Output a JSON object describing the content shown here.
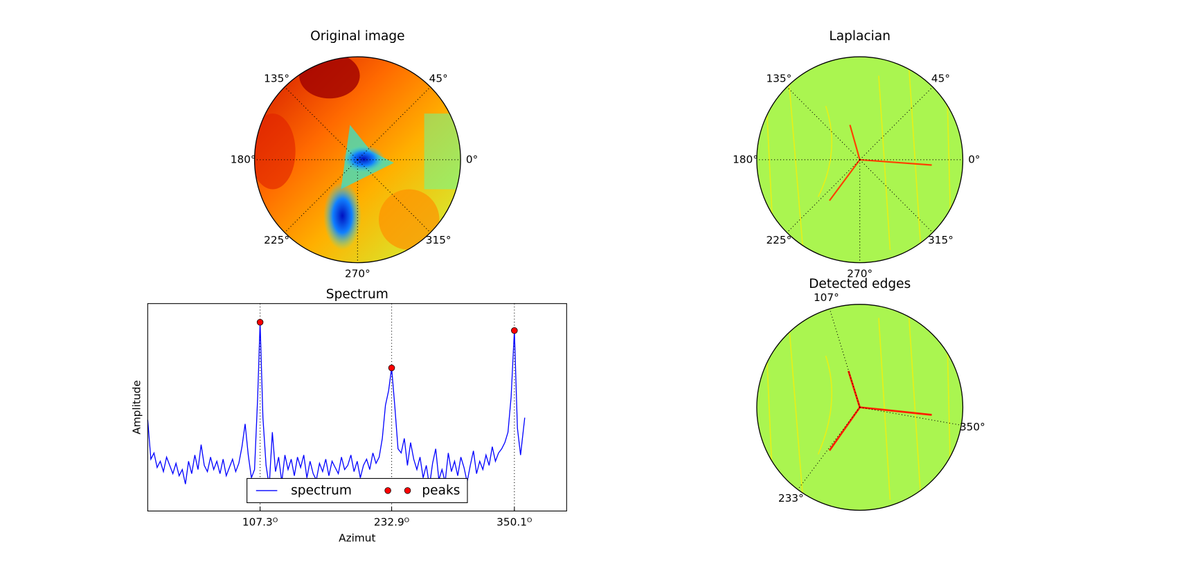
{
  "chart_data": [
    {
      "type": "polar-image",
      "title": "Original image",
      "colormap": "jet",
      "thetaticks": [
        {
          "value": 0,
          "label": "0°"
        },
        {
          "value": 45,
          "label": "45°"
        },
        {
          "value": 135,
          "label": "135°"
        },
        {
          "value": 180,
          "label": "180°"
        },
        {
          "value": 225,
          "label": "225°"
        },
        {
          "value": 270,
          "label": "270°"
        },
        {
          "value": 315,
          "label": "315°"
        }
      ],
      "grid": true
    },
    {
      "type": "polar-image",
      "title": "Laplacian",
      "thetaticks": [
        {
          "value": 0,
          "label": "0°"
        },
        {
          "value": 45,
          "label": "45°"
        },
        {
          "value": 135,
          "label": "135°"
        },
        {
          "value": 180,
          "label": "180°"
        },
        {
          "value": 225,
          "label": "225°"
        },
        {
          "value": 270,
          "label": "270°"
        },
        {
          "value": 315,
          "label": "315°"
        }
      ],
      "grid": true
    },
    {
      "type": "line",
      "title": "Spectrum",
      "xlabel": "Azimut",
      "ylabel": "Amplitude",
      "xlim": [
        0,
        400
      ],
      "ylim": [
        0,
        1
      ],
      "xticks": [
        {
          "value": 107.3,
          "label": "107.3ᴼ"
        },
        {
          "value": 232.9,
          "label": "232.9ᴼ"
        },
        {
          "value": 350.1,
          "label": "350.1ᴼ"
        }
      ],
      "grid": true,
      "legend": "lower center",
      "series": [
        {
          "name": "spectrum",
          "color": "#0000ff",
          "x": [
            0,
            3,
            6,
            9,
            12,
            15,
            18,
            21,
            24,
            27,
            30,
            33,
            36,
            39,
            42,
            45,
            48,
            51,
            54,
            57,
            60,
            63,
            66,
            69,
            72,
            75,
            78,
            81,
            84,
            87,
            90,
            93,
            96,
            99,
            102,
            105,
            107.3,
            110,
            113,
            116,
            119,
            122,
            125,
            128,
            131,
            134,
            137,
            140,
            143,
            146,
            149,
            152,
            155,
            158,
            161,
            164,
            167,
            170,
            173,
            176,
            179,
            182,
            185,
            188,
            191,
            194,
            197,
            200,
            203,
            206,
            209,
            212,
            215,
            218,
            221,
            224,
            227,
            230,
            232.9,
            236,
            239,
            242,
            245,
            248,
            251,
            254,
            257,
            260,
            263,
            266,
            269,
            272,
            275,
            278,
            281,
            284,
            287,
            290,
            293,
            296,
            299,
            302,
            305,
            308,
            311,
            314,
            317,
            320,
            323,
            326,
            329,
            332,
            335,
            338,
            341,
            344,
            347,
            350.1,
            353,
            356,
            360
          ],
          "values": [
            0.44,
            0.25,
            0.28,
            0.21,
            0.24,
            0.19,
            0.26,
            0.22,
            0.18,
            0.23,
            0.17,
            0.2,
            0.13,
            0.24,
            0.18,
            0.27,
            0.2,
            0.32,
            0.22,
            0.19,
            0.26,
            0.2,
            0.24,
            0.18,
            0.25,
            0.17,
            0.21,
            0.25,
            0.19,
            0.23,
            0.31,
            0.42,
            0.27,
            0.16,
            0.2,
            0.55,
            0.91,
            0.45,
            0.22,
            0.12,
            0.38,
            0.19,
            0.26,
            0.14,
            0.27,
            0.2,
            0.25,
            0.17,
            0.26,
            0.21,
            0.27,
            0.16,
            0.24,
            0.18,
            0.15,
            0.23,
            0.19,
            0.25,
            0.17,
            0.24,
            0.21,
            0.18,
            0.26,
            0.2,
            0.22,
            0.27,
            0.19,
            0.24,
            0.16,
            0.22,
            0.25,
            0.2,
            0.28,
            0.23,
            0.26,
            0.35,
            0.51,
            0.58,
            0.69,
            0.5,
            0.3,
            0.28,
            0.35,
            0.22,
            0.33,
            0.25,
            0.2,
            0.26,
            0.16,
            0.22,
            0.12,
            0.23,
            0.3,
            0.15,
            0.2,
            0.14,
            0.28,
            0.19,
            0.24,
            0.17,
            0.26,
            0.21,
            0.14,
            0.22,
            0.29,
            0.18,
            0.24,
            0.2,
            0.27,
            0.22,
            0.31,
            0.24,
            0.28,
            0.3,
            0.33,
            0.38,
            0.55,
            0.87,
            0.4,
            0.27,
            0.45
          ]
        },
        {
          "name": "peaks",
          "color": "#ff0000",
          "x": [
            107.3,
            232.9,
            350.1
          ],
          "values": [
            0.91,
            0.69,
            0.87
          ]
        }
      ]
    },
    {
      "type": "polar-image",
      "title": "Detected edges",
      "thetaticks": [
        {
          "value": 107,
          "label": "107°"
        },
        {
          "value": 233,
          "label": "233°"
        },
        {
          "value": 350,
          "label": "350°"
        }
      ],
      "grid": true
    }
  ]
}
